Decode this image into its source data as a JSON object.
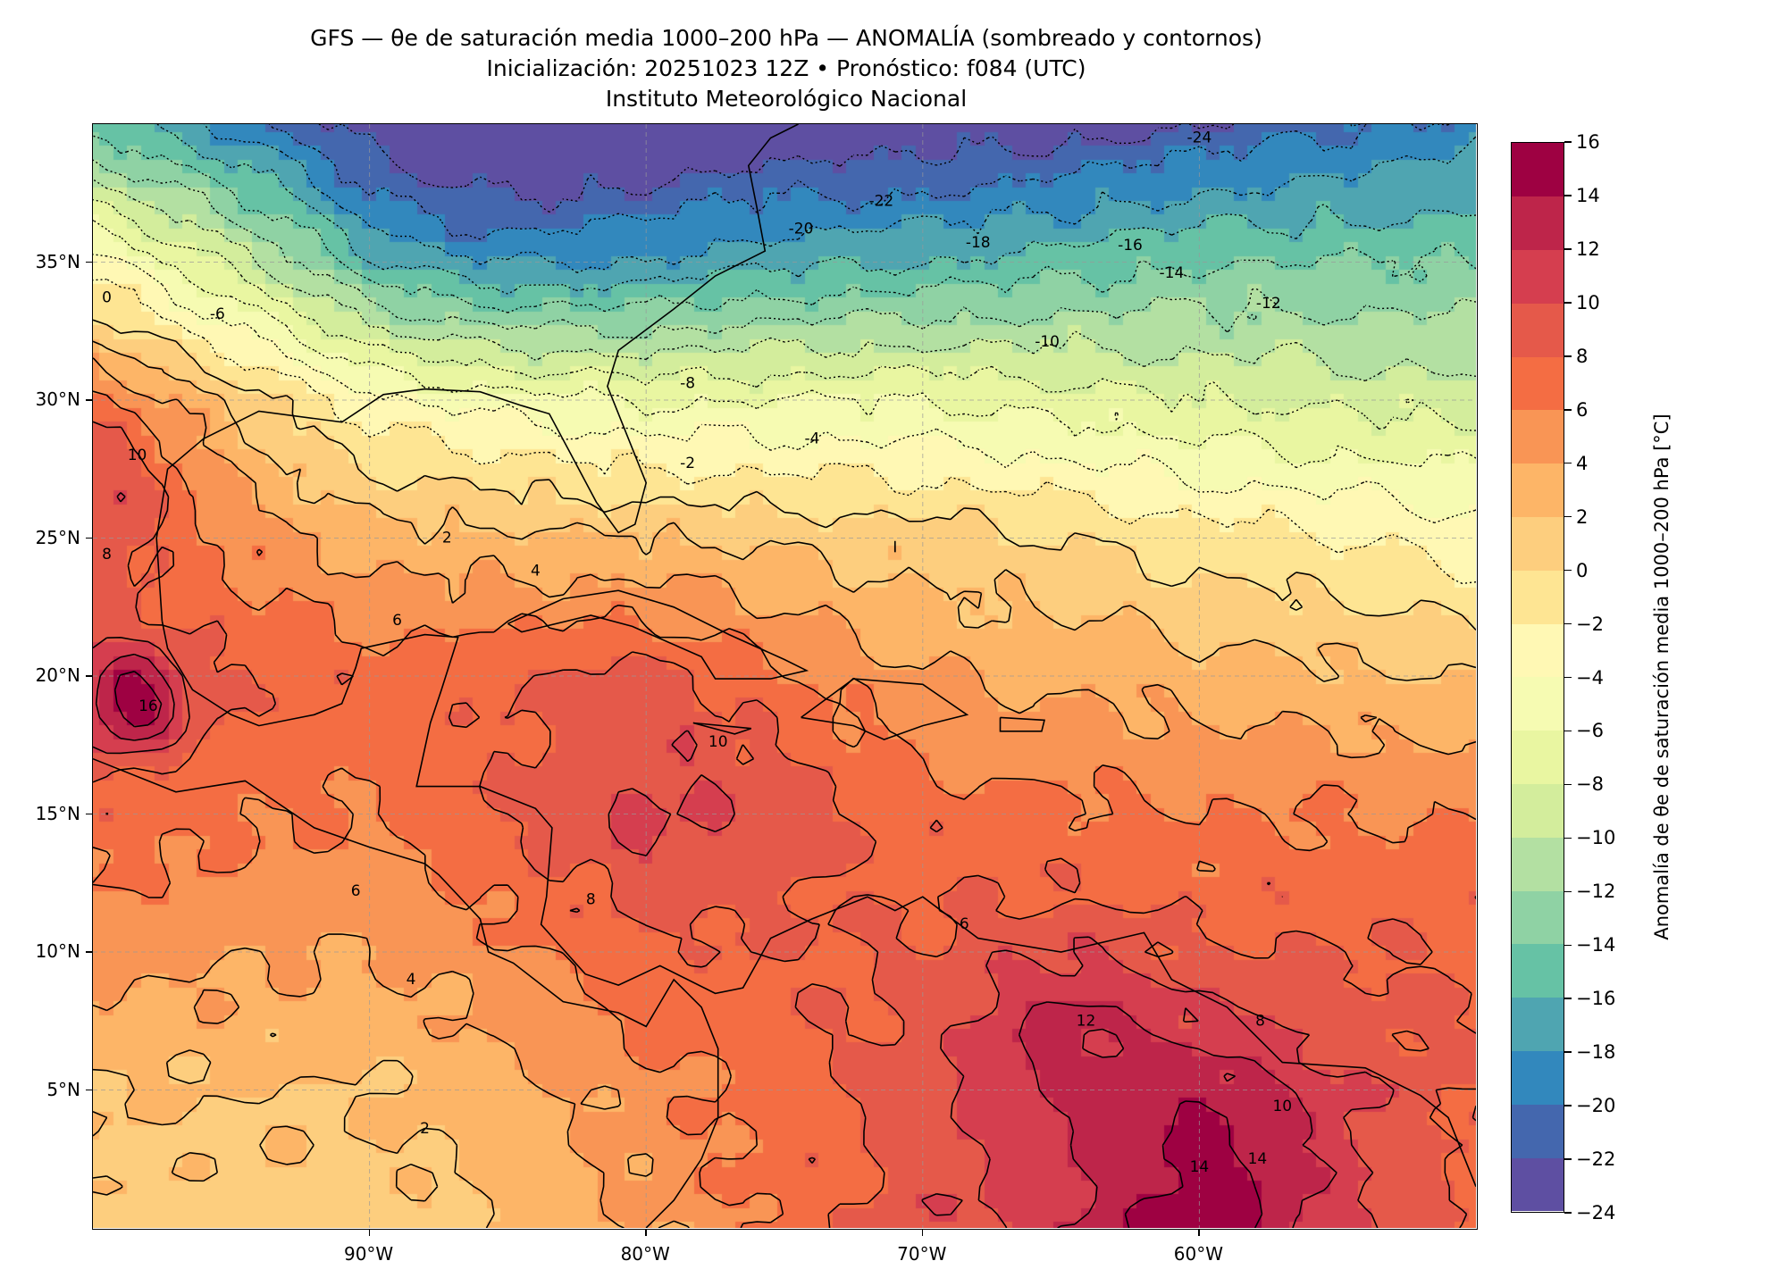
{
  "header": {
    "title_line1": "GFS — θe de saturación media 1000–200 hPa — ANOMALÍA (sombreado y contornos)",
    "title_line2": "Inicialización: 20251023 12Z   •   Pronóstico: f084 (UTC)",
    "title_line3": "Instituto Meteorológico Nacional"
  },
  "chart_data": {
    "type": "heatmap",
    "title": "GFS — θe de saturación media 1000–200 hPa — ANOMALÍA (sombreado y contornos)",
    "xlabel": "",
    "ylabel": "",
    "xlim": [
      -100,
      -50
    ],
    "ylim": [
      0,
      40
    ],
    "grid": true,
    "x_ticks": [
      {
        "value": -90,
        "label": "90°W"
      },
      {
        "value": -80,
        "label": "80°W"
      },
      {
        "value": -70,
        "label": "70°W"
      },
      {
        "value": -60,
        "label": "60°W"
      }
    ],
    "y_ticks": [
      {
        "value": 5,
        "label": "5°N"
      },
      {
        "value": 10,
        "label": "10°N"
      },
      {
        "value": 15,
        "label": "15°N"
      },
      {
        "value": 20,
        "label": "20°N"
      },
      {
        "value": 25,
        "label": "25°N"
      },
      {
        "value": 30,
        "label": "30°N"
      },
      {
        "value": 35,
        "label": "35°N"
      }
    ],
    "field_profiles": {
      "lons": [
        -100,
        -90,
        -80,
        -70,
        -60,
        -50
      ],
      "lats": [
        0,
        5,
        10,
        15,
        20,
        25,
        30,
        35,
        40
      ],
      "values": [
        [
          1,
          2,
          5,
          7,
          9,
          8,
          6,
          -3,
          -15
        ],
        [
          1,
          2,
          4,
          6,
          7,
          3,
          -3,
          -14,
          -22
        ],
        [
          4,
          5,
          7,
          9,
          8,
          2,
          -6,
          -17,
          -24
        ],
        [
          9,
          9,
          8,
          7,
          4,
          1,
          -6,
          -16,
          -24
        ],
        [
          14,
          12,
          8,
          6,
          3,
          -1,
          -8,
          -14,
          -22
        ],
        [
          7,
          8,
          8,
          6,
          2,
          -3,
          -9,
          -14,
          -19
        ]
      ]
    },
    "contour_interval": 2,
    "contour_labels": [
      {
        "text": "-24",
        "lon": -60.0,
        "lat": 39.5
      },
      {
        "text": "-22",
        "lon": -71.5,
        "lat": 37.2
      },
      {
        "text": "-20",
        "lon": -74.4,
        "lat": 36.2
      },
      {
        "text": "-18",
        "lon": -68.0,
        "lat": 35.7
      },
      {
        "text": "-16",
        "lon": -62.5,
        "lat": 35.6
      },
      {
        "text": "-14",
        "lon": -61.0,
        "lat": 34.6
      },
      {
        "text": "-12",
        "lon": -57.5,
        "lat": 33.5
      },
      {
        "text": "-10",
        "lon": -65.5,
        "lat": 32.1
      },
      {
        "text": "-8",
        "lon": -78.5,
        "lat": 30.6
      },
      {
        "text": "-6",
        "lon": -95.5,
        "lat": 33.1
      },
      {
        "text": "-4",
        "lon": -74.0,
        "lat": 28.6
      },
      {
        "text": "-2",
        "lon": -78.5,
        "lat": 27.7
      },
      {
        "text": "0",
        "lon": -99.5,
        "lat": 33.7
      },
      {
        "text": "2",
        "lon": -87.2,
        "lat": 25.0
      },
      {
        "text": "4",
        "lon": -84.0,
        "lat": 23.8
      },
      {
        "text": "6",
        "lon": -89.0,
        "lat": 22.0
      },
      {
        "text": "6",
        "lon": -90.5,
        "lat": 12.2
      },
      {
        "text": "4",
        "lon": -88.5,
        "lat": 9.0
      },
      {
        "text": "8",
        "lon": -82.0,
        "lat": 11.9
      },
      {
        "text": "10",
        "lon": -77.4,
        "lat": 17.6
      },
      {
        "text": "12",
        "lon": -64.1,
        "lat": 7.5
      },
      {
        "text": "14",
        "lon": -60.0,
        "lat": 2.2
      },
      {
        "text": "14",
        "lon": -57.9,
        "lat": 2.5
      },
      {
        "text": "10",
        "lon": -57.0,
        "lat": 4.4
      },
      {
        "text": "8",
        "lon": -57.8,
        "lat": 7.5
      },
      {
        "text": "16",
        "lon": -98.0,
        "lat": 18.9
      },
      {
        "text": "10",
        "lon": -98.4,
        "lat": 28.0
      },
      {
        "text": "8",
        "lon": -99.5,
        "lat": 24.4
      },
      {
        "text": "2",
        "lon": -88.0,
        "lat": 3.6
      },
      {
        "text": "6",
        "lon": -68.5,
        "lat": 11.0
      }
    ],
    "colorbar": {
      "label": "Anomalía de θe de saturación media 1000–200 hPa [°C]",
      "levels": [
        -24,
        -22,
        -20,
        -18,
        -16,
        -14,
        -12,
        -10,
        -8,
        -6,
        -4,
        -2,
        0,
        2,
        4,
        6,
        8,
        10,
        12,
        14,
        16
      ],
      "tick_labels": [
        "−24",
        "−22",
        "−20",
        "−18",
        "−16",
        "−14",
        "−12",
        "−10",
        "−8",
        "−6",
        "−4",
        "−2",
        "0",
        "2",
        "4",
        "6",
        "8",
        "10",
        "12",
        "14",
        "16"
      ],
      "colors": [
        "#5e4fa2",
        "#4467ae",
        "#3288bd",
        "#4fa5b1",
        "#66c2a5",
        "#8fd2a4",
        "#b3e0a2",
        "#d3ed9c",
        "#e9f6a1",
        "#f6fbb2",
        "#fff8b4",
        "#fee593",
        "#fdce7e",
        "#fdb567",
        "#f99555",
        "#f46d43",
        "#e5594a",
        "#d53e4f",
        "#be254a",
        "#9e0142"
      ]
    }
  }
}
